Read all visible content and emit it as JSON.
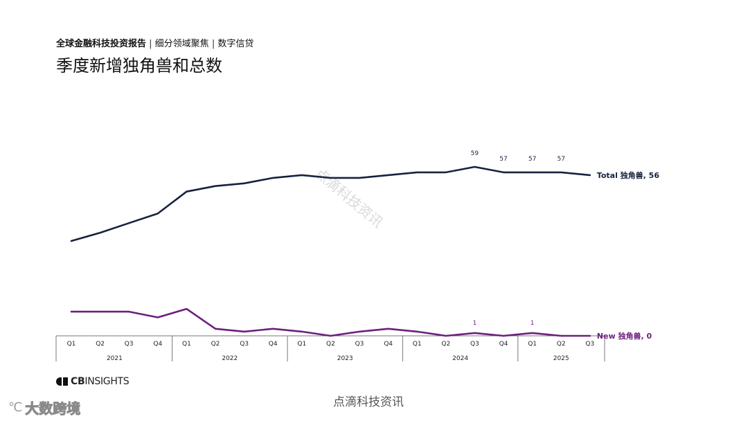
{
  "header": {
    "report_name": "全球金融科技投资报告",
    "sep1": " | ",
    "segment1": "细分领域聚焦",
    "sep2": " | ",
    "segment2": "数字信贷",
    "title": "季度新增独角兽和总数"
  },
  "brand": {
    "logo_cb": "CB",
    "logo_insights": "INSIGHTS"
  },
  "watermarks": {
    "bottom": "点滴科技资讯",
    "diagonal": "点滴科技资讯",
    "corner": "大数跨境",
    "corner_icon": "℃"
  },
  "colors": {
    "total": "#17223f",
    "new": "#6c1f7d",
    "axis": "#777777"
  },
  "chart_data": {
    "type": "line",
    "title": "季度新增独角兽和总数",
    "quarters": [
      "Q1",
      "Q2",
      "Q3",
      "Q4",
      "Q1",
      "Q2",
      "Q3",
      "Q4",
      "Q1",
      "Q2",
      "Q3",
      "Q4",
      "Q1",
      "Q2",
      "Q3",
      "Q4",
      "Q1",
      "Q2",
      "Q3"
    ],
    "years": [
      {
        "label": "2021",
        "count": 4
      },
      {
        "label": "2022",
        "count": 4
      },
      {
        "label": "2023",
        "count": 4
      },
      {
        "label": "2024",
        "count": 4
      },
      {
        "label": "2025",
        "count": 3
      }
    ],
    "series": [
      {
        "name": "Total 独角兽",
        "end_label": "Total 独角兽, 56",
        "values": [
          32,
          35,
          38.5,
          42,
          50,
          52,
          53,
          55,
          56,
          55,
          55,
          56,
          57,
          57,
          59,
          57,
          57,
          57,
          56
        ],
        "point_labels": {
          "14": "59",
          "15": "57",
          "16": "57",
          "17": "57"
        }
      },
      {
        "name": "New 独角兽",
        "end_label": "New 独角兽, 0",
        "values": [
          8.5,
          8.5,
          8.5,
          6.5,
          9.5,
          2.5,
          1.5,
          2.5,
          1.5,
          0,
          1.5,
          2.5,
          1.5,
          0,
          1,
          0,
          1,
          0,
          0
        ],
        "point_labels": {
          "14": "1",
          "16": "1"
        }
      }
    ]
  }
}
